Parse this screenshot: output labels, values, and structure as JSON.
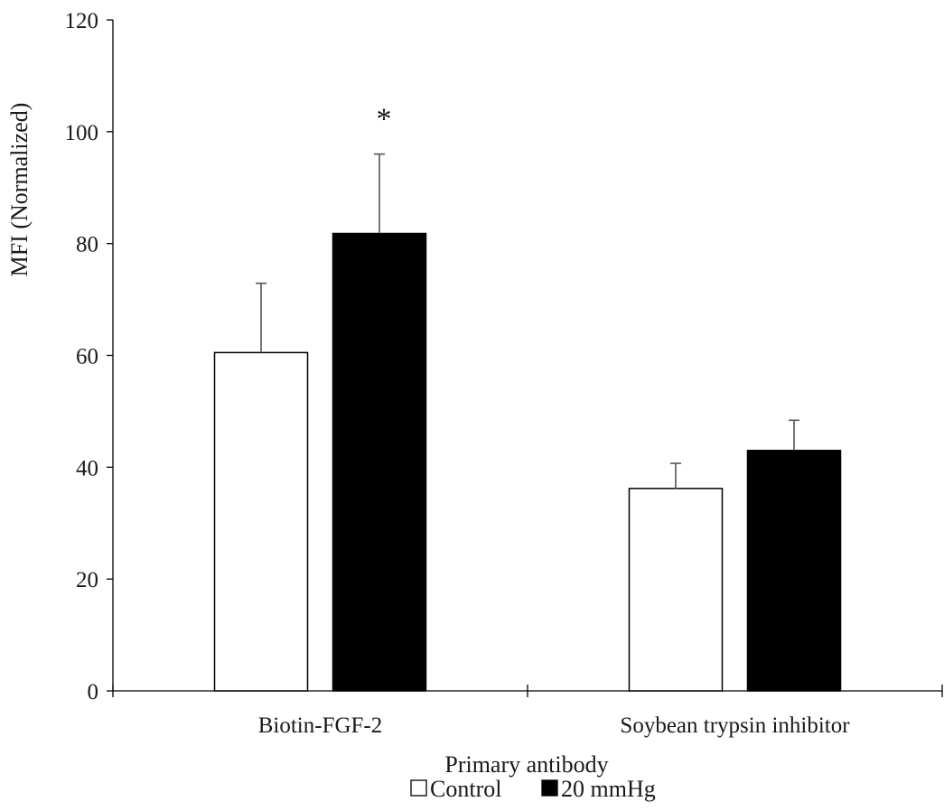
{
  "chart_data": {
    "type": "bar",
    "categories": [
      "Biotin-FGF-2",
      "Soybean trypsin inhibitor"
    ],
    "series": [
      {
        "name": "Control",
        "color": "#ffffff",
        "values": [
          60.5,
          36.2
        ],
        "errors": [
          12.4,
          4.5
        ]
      },
      {
        "name": "20 mmHg",
        "color": "#000000",
        "values": [
          81.8,
          43.0
        ],
        "errors": [
          14.2,
          5.4
        ]
      }
    ],
    "ylim": [
      0,
      120
    ],
    "yticks": [
      0,
      20,
      40,
      60,
      80,
      100,
      120
    ],
    "ylabel": "MFI (Normalized)",
    "xlabel": "Primary antibody",
    "legend_position": "bottom",
    "grid": false,
    "annotations": [
      {
        "text": "*",
        "category": 0,
        "series": 1
      }
    ]
  }
}
